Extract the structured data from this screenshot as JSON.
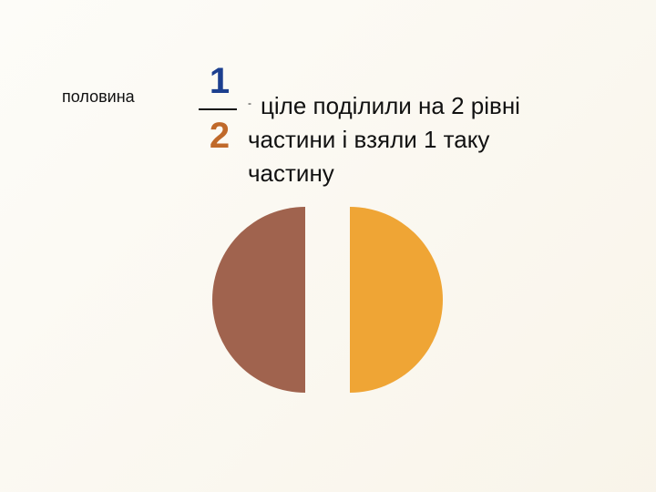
{
  "slide": {
    "term": "половина",
    "fraction": {
      "numerator": "1",
      "denominator": "2"
    },
    "dash": "-",
    "definition_lines": [
      "ціле поділили  на 2 рівні",
      "частини і взяли 1 таку",
      "частину"
    ]
  },
  "colors": {
    "left_half": "#a0634e",
    "right_half": "#efa535",
    "numerator": "#1c3f8f",
    "denominator": "#c0692a",
    "fraction_line": "#111111"
  },
  "illustration": {
    "name": "circle split into two equal halves",
    "parts_total": 2,
    "parts_taken": 1
  }
}
